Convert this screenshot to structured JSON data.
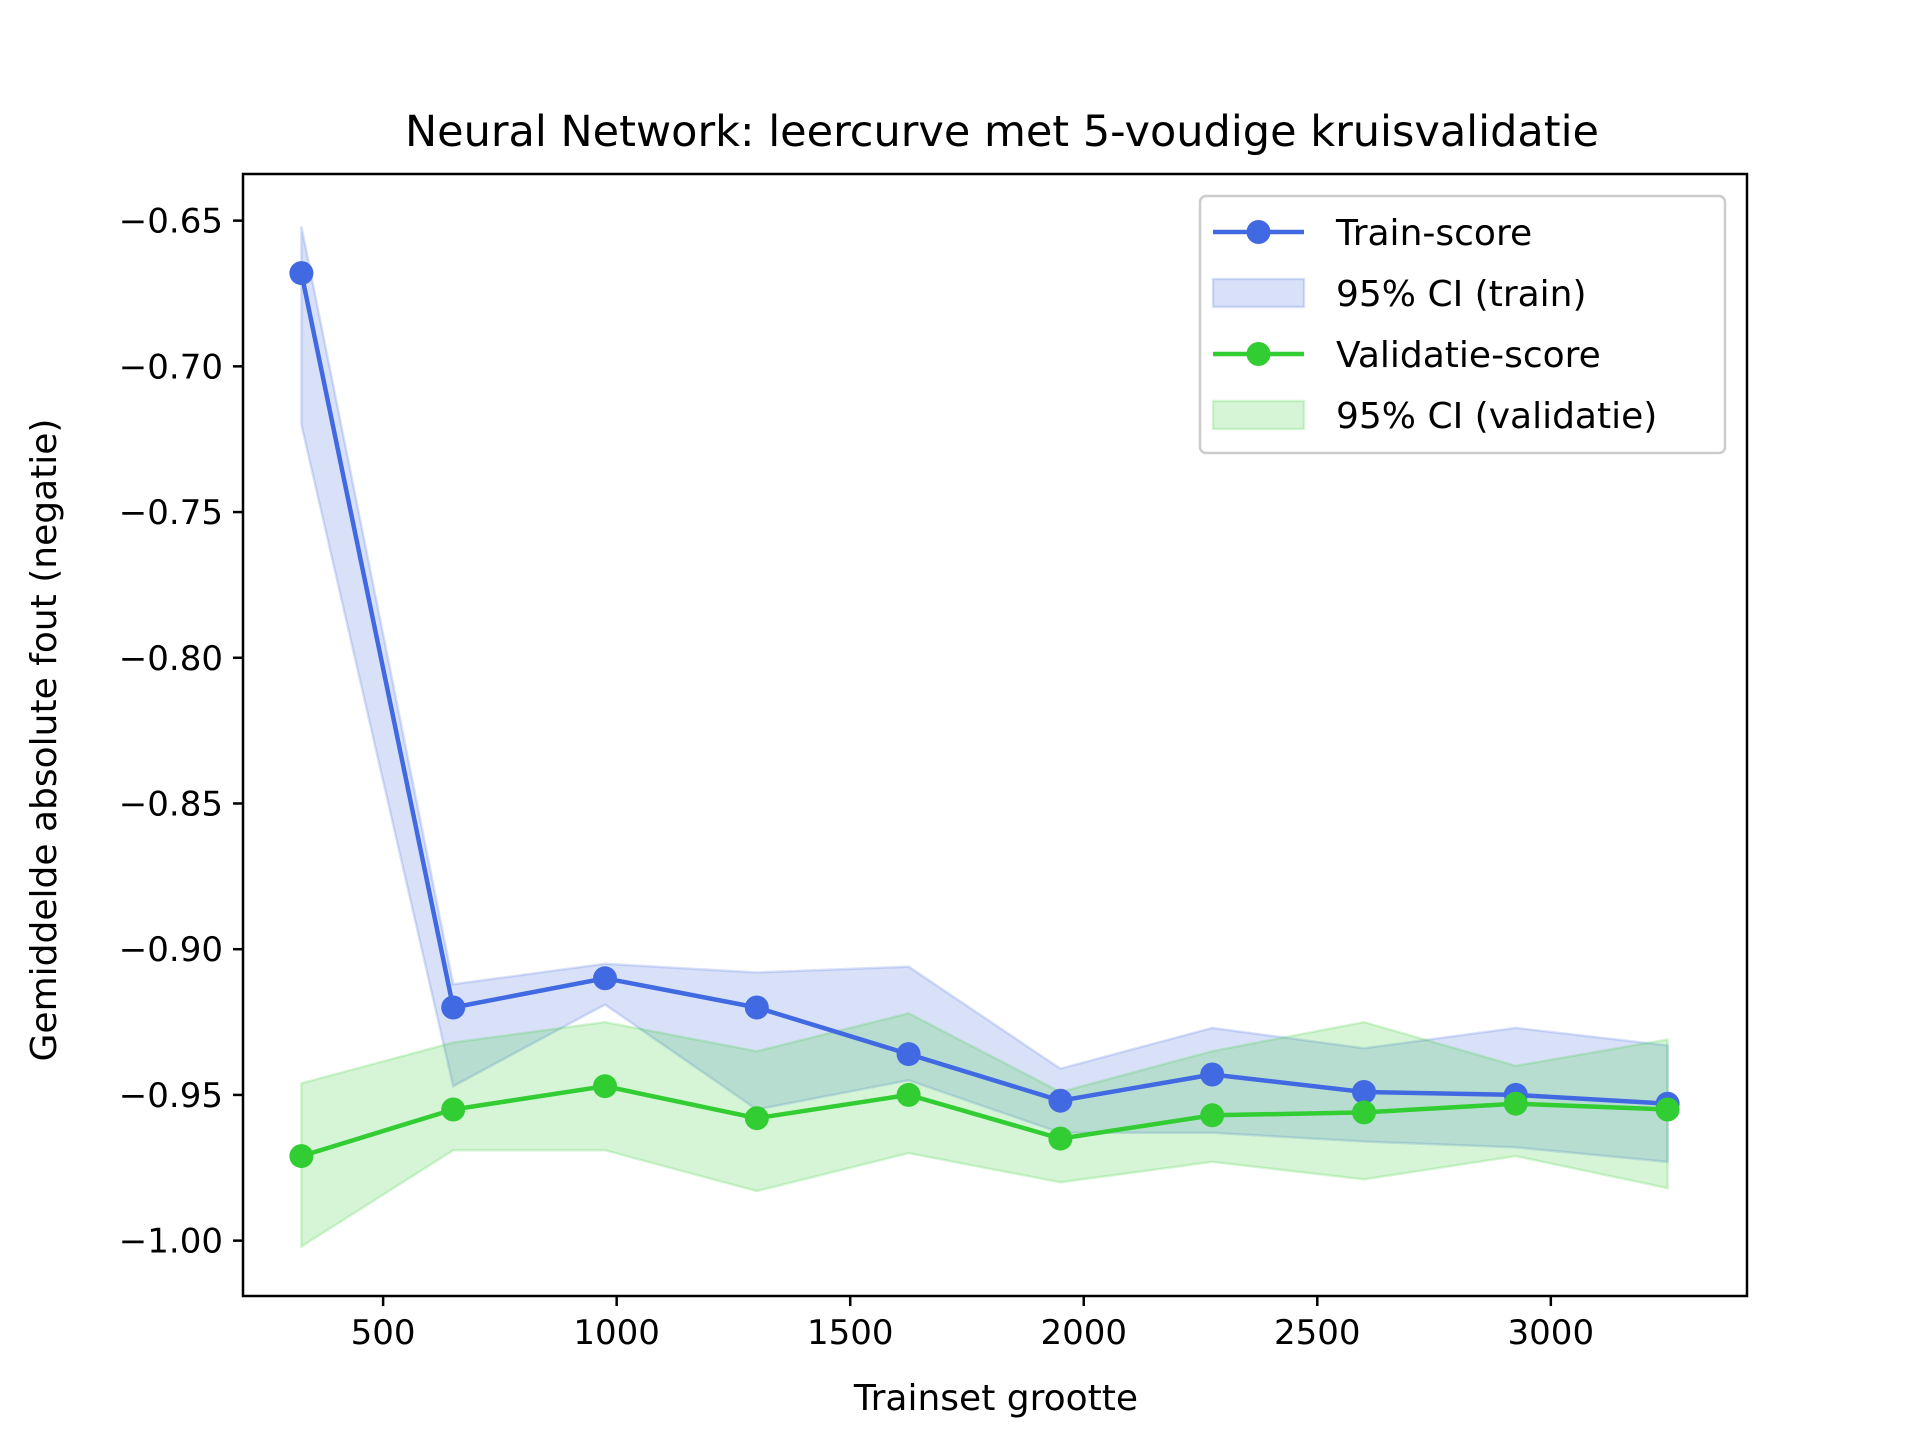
{
  "chart_data": {
    "type": "line",
    "title": "Neural Network: leercurve met 5-voudige kruisvalidatie",
    "xlabel": "Trainset grootte",
    "ylabel": "Gemiddelde absolute fout (negatie)",
    "xlim": [
      200,
      3420
    ],
    "ylim": [
      -1.019,
      -0.634
    ],
    "xticks": [
      500,
      1000,
      1500,
      2000,
      2500,
      3000
    ],
    "xtick_labels": [
      "500",
      "1000",
      "1500",
      "2000",
      "2500",
      "3000"
    ],
    "yticks": [
      -0.65,
      -0.7,
      -0.75,
      -0.8,
      -0.85,
      -0.9,
      -0.95,
      -1.0
    ],
    "ytick_labels": [
      "−0.65",
      "−0.70",
      "−0.75",
      "−0.80",
      "−0.85",
      "−0.90",
      "−0.95",
      "−1.00"
    ],
    "grid": false,
    "legend_position": "top-right",
    "x": [
      325,
      650,
      975,
      1300,
      1625,
      1950,
      2275,
      2600,
      2925,
      3250
    ],
    "series": [
      {
        "name": "Train-score",
        "color": "#4169e1",
        "values": [
          -0.668,
          -0.92,
          -0.91,
          -0.92,
          -0.936,
          -0.952,
          -0.943,
          -0.949,
          -0.95,
          -0.953
        ]
      },
      {
        "name": "Validatie-score",
        "color": "#32cd32",
        "values": [
          -0.971,
          -0.955,
          -0.947,
          -0.958,
          -0.95,
          -0.965,
          -0.957,
          -0.956,
          -0.953,
          -0.955
        ]
      }
    ],
    "bands": [
      {
        "name": "95% CI (train)",
        "color": "#4169e1",
        "upper": [
          -0.652,
          -0.912,
          -0.905,
          -0.908,
          -0.906,
          -0.941,
          -0.927,
          -0.934,
          -0.927,
          -0.933
        ],
        "lower": [
          -0.72,
          -0.947,
          -0.919,
          -0.955,
          -0.945,
          -0.963,
          -0.963,
          -0.966,
          -0.968,
          -0.973
        ]
      },
      {
        "name": "95% CI (validatie)",
        "color": "#32cd32",
        "upper": [
          -0.946,
          -0.932,
          -0.925,
          -0.935,
          -0.922,
          -0.949,
          -0.935,
          -0.925,
          -0.94,
          -0.931
        ],
        "lower": [
          -1.002,
          -0.969,
          -0.969,
          -0.983,
          -0.97,
          -0.98,
          -0.973,
          -0.979,
          -0.971,
          -0.982
        ]
      }
    ],
    "legend": [
      {
        "kind": "line",
        "label": "Train-score",
        "color": "#4169e1"
      },
      {
        "kind": "band",
        "label": "95% CI (train)",
        "color": "#4169e1"
      },
      {
        "kind": "line",
        "label": "Validatie-score",
        "color": "#32cd32"
      },
      {
        "kind": "band",
        "label": "95% CI (validatie)",
        "color": "#32cd32"
      }
    ]
  }
}
